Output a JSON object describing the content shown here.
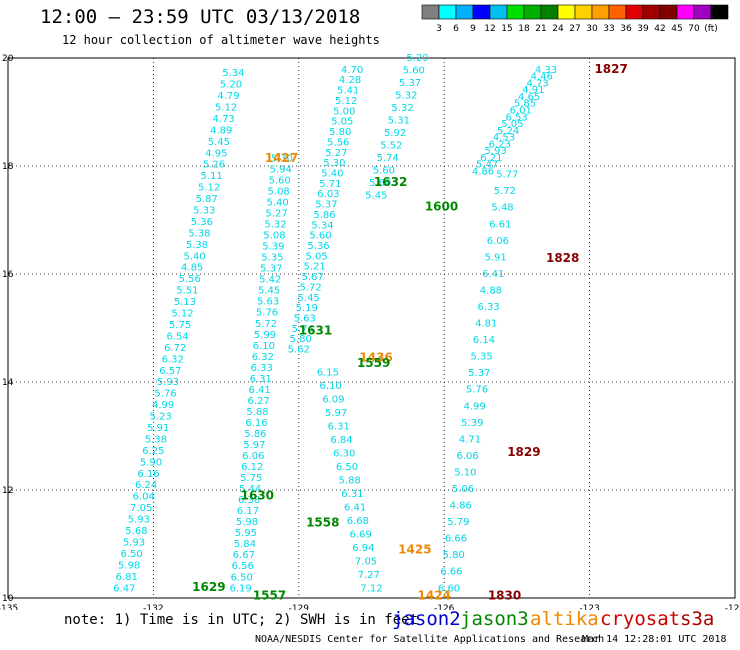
{
  "title": "12:00 – 23:59 UTC 03/13/2018",
  "subtitle": "12 hour collection of altimeter wave heights",
  "colorbar": {
    "colors": [
      "#808080",
      "#00ffff",
      "#00b0ff",
      "#0000ff",
      "#00c0f0",
      "#00e000",
      "#00b000",
      "#008000",
      "#ffff00",
      "#ffd000",
      "#ffa000",
      "#ff6000",
      "#e00000",
      "#a00000",
      "#800000",
      "#ff00ff",
      "#a000c0",
      "#000000"
    ],
    "labels": [
      "3",
      "6",
      "9",
      "12",
      "15",
      "18",
      "21",
      "24",
      "27",
      "30",
      "33",
      "36",
      "39",
      "42",
      "45",
      "70",
      "(ft)"
    ]
  },
  "note": "note: 1) Time is in UTC; 2) SWH is in feet",
  "legend": [
    {
      "name": "jason2",
      "color": "#0000cc"
    },
    {
      "name": "jason3",
      "color": "#008800"
    },
    {
      "name": "altika",
      "color": "#ee8800"
    },
    {
      "name": "cryosat",
      "color": "#cc0000"
    },
    {
      "name": "s3a",
      "color": "#aa0000"
    }
  ],
  "footer": "NOAA/NESDIS Center for Satellite Applications and Research",
  "timestamp": "Mar 14 12:28:01 UTC 2018",
  "axes": {
    "x_ticks": [
      "-135",
      "-132",
      "-129",
      "-126",
      "-123",
      "-120"
    ],
    "x_values": [
      -135,
      -132,
      -129,
      -126,
      -123,
      -120
    ],
    "y_ticks": [
      "20",
      "18",
      "16",
      "14",
      "12",
      "10"
    ],
    "y_values": [
      20,
      18,
      16,
      14,
      12,
      10
    ]
  },
  "track_colors": {
    "wave": "#00d8e8",
    "time_jason3": "#008800",
    "time_altika": "#ee8800",
    "time_cryosat": "#880000"
  },
  "tracks": [
    {
      "id": "track-1",
      "start": [
        -130.35,
        19.72
      ],
      "end": [
        -132.6,
        10.18
      ],
      "values": [
        "5.34",
        "5.20",
        "4.79",
        "5.12",
        "4.73",
        "4.89",
        "5.45",
        "4.95",
        "5.26",
        "5.11",
        "5.12",
        "5.87",
        "5.33",
        "5.36",
        "5.38",
        "5.38",
        "5.40",
        "4.85",
        "5.56",
        "5.51",
        "5.13",
        "5.12",
        "5.75",
        "6.54",
        "6.72",
        "6.32",
        "6.57",
        "5.93",
        "5.76",
        "4.99",
        "5.23",
        "5.91",
        "5.38",
        "6.25",
        "5.90",
        "6.16",
        "6.24",
        "6.04",
        "7.05",
        "5.93",
        "5.68",
        "5.93",
        "6.50",
        "5.98",
        "6.81",
        "6.47"
      ]
    },
    {
      "id": "track-2",
      "start": [
        -129.35,
        18.14
      ],
      "end": [
        -130.2,
        10.18
      ],
      "values": [
        "5.30",
        "5.94",
        "5.60",
        "5.08",
        "5.40",
        "5.27",
        "5.32",
        "5.08",
        "5.39",
        "5.35",
        "5.37",
        "5.42",
        "5.45",
        "5.63",
        "5.76",
        "5.72",
        "5.99",
        "6.10",
        "6.32",
        "6.33",
        "6.31",
        "6.41",
        "6.27",
        "5.88",
        "6.16",
        "5.86",
        "5.97",
        "6.06",
        "6.12",
        "5.75",
        "5.44",
        "6.38",
        "6.17",
        "5.98",
        "5.95",
        "5.84",
        "6.67",
        "6.56",
        "6.50",
        "6.19"
      ]
    },
    {
      "id": "track-3",
      "start": [
        -127.9,
        19.78
      ],
      "end": [
        -129.0,
        14.6
      ],
      "values": [
        "4.70",
        "4.28",
        "5.41",
        "5.12",
        "5.00",
        "5.05",
        "5.80",
        "5.56",
        "5.27",
        "5.30",
        "5.40",
        "5.71",
        "6.03",
        "5.37",
        "5.86",
        "5.34",
        "5.60",
        "5.36",
        "5.05",
        "5.21",
        "5.67",
        "5.72",
        "5.45",
        "5.19",
        "5.63",
        "5.74",
        "5.80",
        "5.62"
      ]
    },
    {
      "id": "track-4",
      "start": [
        -128.4,
        14.18
      ],
      "end": [
        -127.5,
        10.18
      ],
      "values": [
        "6.15",
        "6.10",
        "6.09",
        "5.97",
        "6.31",
        "6.84",
        "6.30",
        "6.50",
        "5.88",
        "6.31",
        "6.41",
        "6.68",
        "6.69",
        "6.94",
        "7.05",
        "7.27",
        "7.12"
      ]
    },
    {
      "id": "track-5",
      "start": [
        -126.55,
        20.0
      ],
      "end": [
        -127.4,
        17.45
      ],
      "values": [
        "5.20",
        "5.60",
        "5.37",
        "5.32",
        "5.32",
        "5.31",
        "5.92",
        "5.52",
        "5.74",
        "5.60",
        "5.60",
        "5.45"
      ]
    },
    {
      "id": "track-6",
      "start": [
        -123.9,
        19.78
      ],
      "end": [
        -125.2,
        17.9
      ],
      "values": [
        "4.33",
        "4.46",
        "4.73",
        "4.91",
        "4.65",
        "5.85",
        "6.01",
        "6.53",
        "5.05",
        "5.24",
        "4.53",
        "6.23",
        "5.93",
        "6.21",
        "5.47",
        "4.86"
      ]
    },
    {
      "id": "track-7",
      "start": [
        -124.7,
        17.84
      ],
      "end": [
        -125.9,
        10.18
      ],
      "values": [
        "5.77",
        "5.72",
        "5.48",
        "6.61",
        "6.06",
        "5.91",
        "6.41",
        "4.88",
        "6.33",
        "4.81",
        "6.14",
        "5.35",
        "5.37",
        "5.76",
        "4.99",
        "5.39",
        "4.71",
        "6.06",
        "5.10",
        "5.06",
        "4.86",
        "5.79",
        "6.66",
        "5.80",
        "6.66",
        "6.60"
      ]
    }
  ],
  "time_labels": [
    {
      "text": "1827",
      "lon": -122.9,
      "lat": 19.8,
      "sat": "time_cryosat"
    },
    {
      "text": "1427",
      "lon": -129.7,
      "lat": 18.15,
      "sat": "time_altika"
    },
    {
      "text": "1632",
      "lon": -127.45,
      "lat": 17.7,
      "sat": "time_jason3"
    },
    {
      "text": "1600",
      "lon": -126.4,
      "lat": 17.25,
      "sat": "time_jason3"
    },
    {
      "text": "1828",
      "lon": -123.9,
      "lat": 16.3,
      "sat": "time_cryosat"
    },
    {
      "text": "1631",
      "lon": -129.0,
      "lat": 14.95,
      "sat": "time_jason3"
    },
    {
      "text": "1436",
      "lon": -127.75,
      "lat": 14.45,
      "sat": "time_altika"
    },
    {
      "text": "1559",
      "lon": -127.8,
      "lat": 14.35,
      "sat": "time_jason3"
    },
    {
      "text": "1829",
      "lon": -124.7,
      "lat": 12.7,
      "sat": "time_cryosat"
    },
    {
      "text": "1630",
      "lon": -130.2,
      "lat": 11.9,
      "sat": "time_jason3"
    },
    {
      "text": "1558",
      "lon": -128.85,
      "lat": 11.4,
      "sat": "time_jason3"
    },
    {
      "text": "1425",
      "lon": -126.95,
      "lat": 10.9,
      "sat": "time_altika"
    },
    {
      "text": "1629",
      "lon": -131.2,
      "lat": 10.2,
      "sat": "time_jason3"
    },
    {
      "text": "1557",
      "lon": -129.95,
      "lat": 10.05,
      "sat": "time_jason3"
    },
    {
      "text": "1424",
      "lon": -126.55,
      "lat": 10.05,
      "sat": "time_altika"
    },
    {
      "text": "1830",
      "lon": -125.1,
      "lat": 10.05,
      "sat": "time_cryosat"
    }
  ]
}
